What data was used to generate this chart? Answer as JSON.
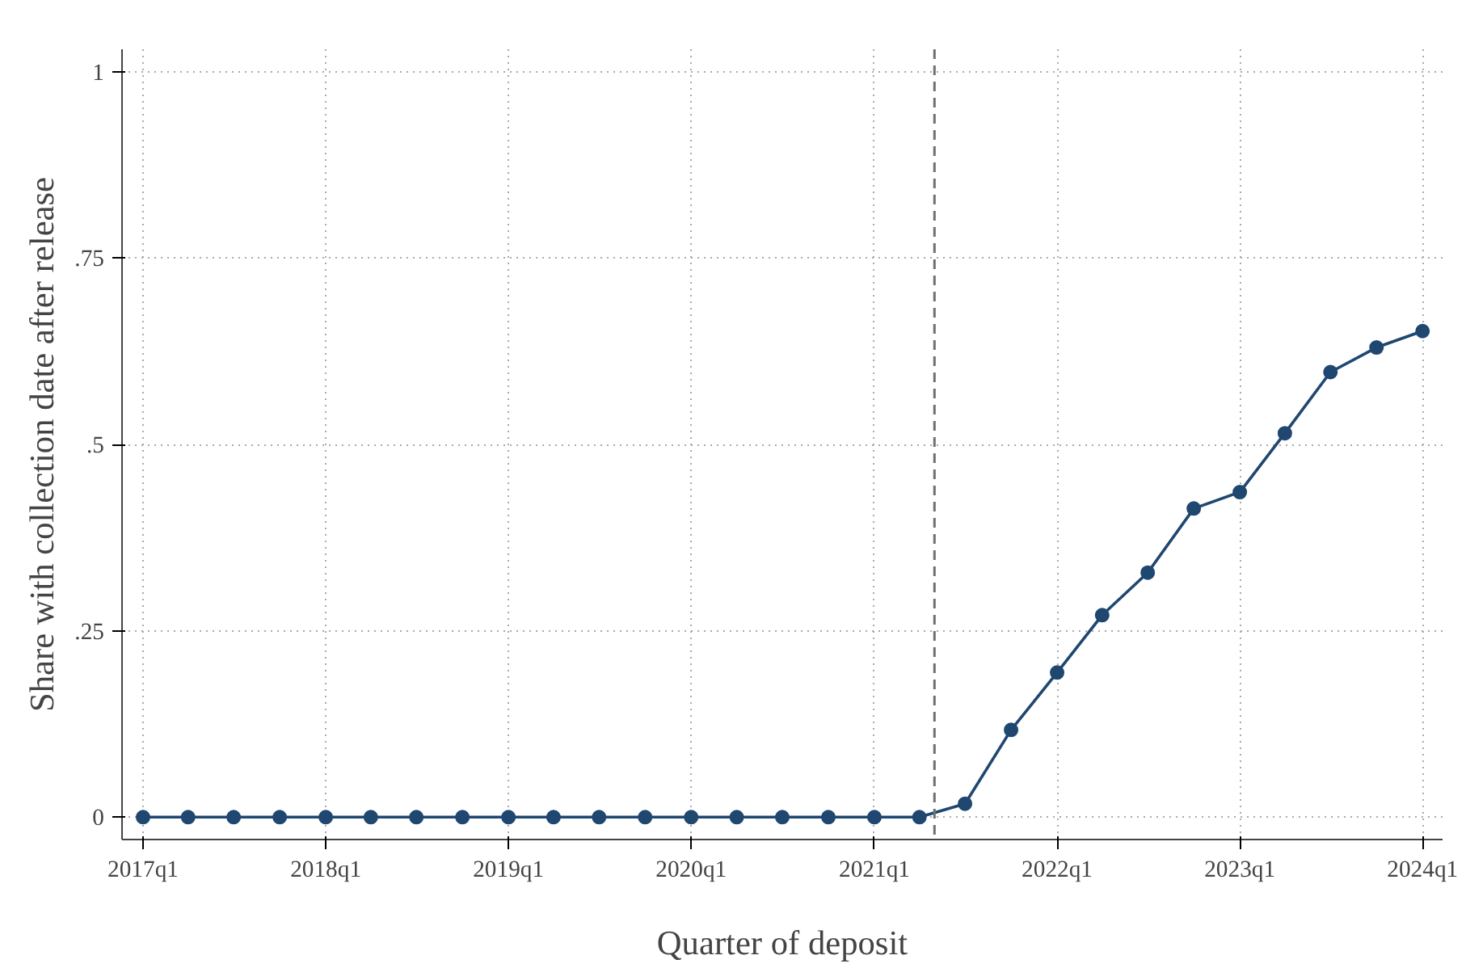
{
  "chart_data": {
    "type": "line",
    "xlabel": "Quarter of deposit",
    "ylabel": "Share with collection date after release",
    "x": [
      "2017-01",
      "2017-04",
      "2017-07",
      "2017-10",
      "2018-01",
      "2018-04",
      "2018-07",
      "2018-10",
      "2019-01",
      "2019-04",
      "2019-07",
      "2019-10",
      "2020-01",
      "2020-04",
      "2020-07",
      "2020-10",
      "2021-01",
      "2021-04",
      "2021-07",
      "2021-10",
      "2022-01",
      "2022-04",
      "2022-07",
      "2022-10",
      "2023-01",
      "2023-04",
      "2023-07",
      "2023-10",
      "2024-01"
    ],
    "series": [
      {
        "color": "#1f4770",
        "values": [
          0,
          0,
          0,
          0,
          0,
          0,
          0,
          0,
          0,
          0,
          0,
          0,
          0,
          0,
          0,
          0,
          0,
          0,
          0.018,
          0.117,
          0.194,
          0.271,
          0.328,
          0.414,
          0.436,
          0.515,
          0.597,
          0.63,
          0.652
        ]
      }
    ],
    "xlim": [
      "2016-11-20",
      "2024-02-10"
    ],
    "xticks": [
      {
        "value": "2017-01",
        "label": "2017q1"
      },
      {
        "value": "2018-01",
        "label": "2018q1"
      },
      {
        "value": "2019-01",
        "label": "2019q1"
      },
      {
        "value": "2020-01",
        "label": "2020q1"
      },
      {
        "value": "2021-01",
        "label": "2021q1"
      },
      {
        "value": "2022-01",
        "label": "2022q1"
      },
      {
        "value": "2023-01",
        "label": "2023q1"
      },
      {
        "value": "2024-01",
        "label": "2024q1"
      }
    ],
    "ylim": [
      -0.03,
      1.03
    ],
    "yticks": [
      {
        "value": 0,
        "label": "0"
      },
      {
        "value": 0.25,
        "label": ".25"
      },
      {
        "value": 0.5,
        "label": ".5"
      },
      {
        "value": 0.75,
        "label": ".75"
      },
      {
        "value": 1,
        "label": "1"
      }
    ],
    "ref_lines": [
      {
        "axis": "x",
        "value": "2021-05-01",
        "color": "#707070",
        "line_style": "dashed"
      }
    ],
    "grid": true,
    "marker": "circle",
    "line_style": "solid"
  }
}
